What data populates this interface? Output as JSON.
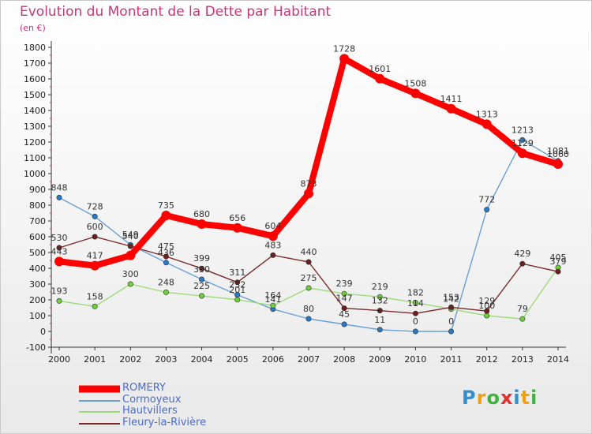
{
  "title": "Evolution du Montant de la Dette par Habitant",
  "subtitle": "(en €)",
  "logo": {
    "text": "Proxiti",
    "colors": [
      "#2f8fd0",
      "#f0a010",
      "#3fb33f",
      "#e03030",
      "#2f8fd0",
      "#f0a010",
      "#3fb33f"
    ]
  },
  "chart_data": {
    "type": "line",
    "title": "Evolution du Montant de la Dette par Habitant",
    "ylabel": "(en €)",
    "xlabel": "",
    "x": [
      "2000",
      "2001",
      "2002",
      "2003",
      "2004",
      "2005",
      "2006",
      "2007",
      "2008",
      "2009",
      "2010",
      "2011",
      "2012",
      "2013",
      "2014"
    ],
    "yticks": [
      "-100",
      "0",
      "100",
      "200",
      "300",
      "400",
      "500",
      "600",
      "700",
      "800",
      "900",
      "1000",
      "1100",
      "1200",
      "1300",
      "1400",
      "1500",
      "1600",
      "1700",
      "1800"
    ],
    "ylim": [
      -100,
      1800
    ],
    "grid": false,
    "legend_position": "bottom-left",
    "series": [
      {
        "name": "ROMERY",
        "color": "#ff0000",
        "marker_color": "#ff0000",
        "width": "thick",
        "values": [
          443,
          417,
          481,
          735,
          680,
          656,
          604,
          873,
          1728,
          1601,
          1508,
          1411,
          1313,
          1129,
          1060
        ],
        "labels": [
          "443",
          "417",
          "",
          "735",
          "680",
          "656",
          "604",
          "873",
          "1728",
          "1601",
          "1508",
          "1411",
          "1313",
          "1129",
          "1060"
        ]
      },
      {
        "name": "Cormoyeux",
        "color": "#6a9fd6",
        "marker_color": "#2a79c7",
        "width": "thin",
        "values": [
          848,
          728,
          549,
          436,
          330,
          232,
          141,
          80,
          45,
          11,
          0,
          0,
          772,
          1213,
          1081
        ],
        "labels": [
          "848",
          "728",
          "549",
          "436",
          "330",
          "232",
          "141",
          "80",
          "45",
          "11",
          "0",
          "0",
          "772",
          "1213",
          "1081"
        ]
      },
      {
        "name": "Hautvillers",
        "color": "#9ddb7a",
        "marker_color": "#6fcf3a",
        "width": "thin",
        "values": [
          193,
          158,
          300,
          248,
          225,
          201,
          164,
          275,
          239,
          219,
          182,
          142,
          100,
          79,
          405
        ],
        "labels": [
          "193",
          "158",
          "300",
          "248",
          "225",
          "201",
          "164",
          "275",
          "239",
          "219",
          "182",
          "142",
          "100",
          "79",
          "405"
        ]
      },
      {
        "name": "Fleury-la-Rivière",
        "color": "#7a2a2a",
        "marker_color": "#6b1f1f",
        "width": "thin",
        "values": [
          530,
          600,
          540,
          475,
          399,
          311,
          483,
          440,
          147,
          132,
          114,
          153,
          129,
          429,
          379
        ],
        "labels": [
          "530",
          "600",
          "540",
          "475",
          "399",
          "311",
          "483",
          "440",
          "147",
          "132",
          "114",
          "153",
          "129",
          "429",
          "379"
        ]
      }
    ]
  }
}
